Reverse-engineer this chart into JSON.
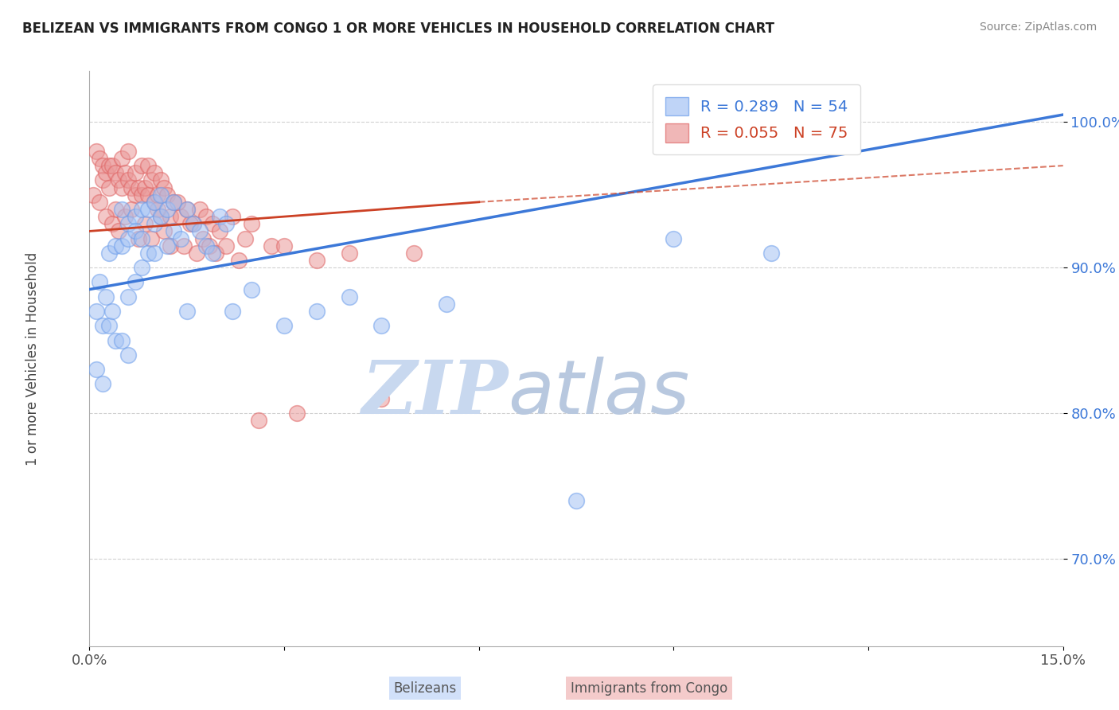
{
  "title": "BELIZEAN VS IMMIGRANTS FROM CONGO 1 OR MORE VEHICLES IN HOUSEHOLD CORRELATION CHART",
  "source": "Source: ZipAtlas.com",
  "ylabel": "1 or more Vehicles in Household",
  "xlim": [
    0.0,
    15.0
  ],
  "ylim": [
    64.0,
    103.5
  ],
  "xtick_positions": [
    0.0,
    3.0,
    6.0,
    9.0,
    12.0,
    15.0
  ],
  "xtick_labels": [
    "0.0%",
    "",
    "",
    "",
    "",
    "15.0%"
  ],
  "ytick_positions": [
    70.0,
    80.0,
    90.0,
    100.0
  ],
  "ytick_labels": [
    "70.0%",
    "80.0%",
    "90.0%",
    "100.0%"
  ],
  "blue_R": 0.289,
  "blue_N": 54,
  "pink_R": 0.055,
  "pink_N": 75,
  "blue_color": "#a4c2f4",
  "pink_color": "#ea9999",
  "blue_edge_color": "#6d9eeb",
  "pink_edge_color": "#e06666",
  "blue_line_color": "#3c78d8",
  "pink_line_color": "#cc4125",
  "legend_label_blue": "Belizeans",
  "legend_label_pink": "Immigrants from Congo",
  "blue_line_x0": 0.0,
  "blue_line_y0": 88.5,
  "blue_line_x1": 15.0,
  "blue_line_y1": 100.5,
  "pink_line_x0": 0.0,
  "pink_line_y0": 92.5,
  "pink_line_x1": 6.0,
  "pink_line_y1": 94.5,
  "pink_dash_x0": 6.0,
  "pink_dash_y0": 94.5,
  "pink_dash_x1": 15.0,
  "pink_dash_y1": 97.0,
  "blue_scatter_x": [
    0.1,
    0.1,
    0.2,
    0.2,
    0.3,
    0.3,
    0.4,
    0.4,
    0.5,
    0.5,
    0.5,
    0.6,
    0.6,
    0.6,
    0.7,
    0.7,
    0.7,
    0.8,
    0.8,
    0.8,
    0.9,
    0.9,
    1.0,
    1.0,
    1.0,
    1.1,
    1.1,
    1.2,
    1.2,
    1.3,
    1.3,
    1.4,
    1.5,
    1.5,
    1.6,
    1.7,
    1.8,
    1.9,
    2.0,
    2.1,
    2.2,
    2.5,
    3.0,
    3.5,
    4.0,
    4.5,
    5.5,
    7.5,
    9.0,
    10.5,
    0.15,
    0.25,
    0.35,
    0.6
  ],
  "blue_scatter_y": [
    87.0,
    83.0,
    86.0,
    82.0,
    91.0,
    86.0,
    91.5,
    85.0,
    94.0,
    91.5,
    85.0,
    93.0,
    92.0,
    88.0,
    93.5,
    92.5,
    89.0,
    94.0,
    92.0,
    90.0,
    94.0,
    91.0,
    94.5,
    93.0,
    91.0,
    95.0,
    93.5,
    94.0,
    91.5,
    94.5,
    92.5,
    92.0,
    94.0,
    87.0,
    93.0,
    92.5,
    91.5,
    91.0,
    93.5,
    93.0,
    87.0,
    88.5,
    86.0,
    87.0,
    88.0,
    86.0,
    87.5,
    74.0,
    92.0,
    91.0,
    89.0,
    88.0,
    87.0,
    84.0
  ],
  "pink_scatter_x": [
    0.05,
    0.1,
    0.15,
    0.2,
    0.2,
    0.25,
    0.3,
    0.3,
    0.35,
    0.4,
    0.4,
    0.45,
    0.5,
    0.5,
    0.55,
    0.6,
    0.6,
    0.65,
    0.7,
    0.7,
    0.75,
    0.8,
    0.8,
    0.85,
    0.9,
    0.9,
    0.95,
    1.0,
    1.0,
    1.05,
    1.1,
    1.1,
    1.15,
    1.2,
    1.25,
    1.3,
    1.4,
    1.5,
    1.6,
    1.7,
    1.8,
    1.9,
    2.0,
    2.2,
    2.4,
    2.5,
    2.8,
    3.0,
    3.5,
    4.0,
    5.0,
    0.15,
    0.25,
    0.35,
    0.45,
    0.55,
    0.65,
    0.75,
    0.85,
    0.95,
    1.05,
    1.15,
    1.25,
    1.35,
    1.45,
    1.55,
    1.65,
    1.75,
    1.85,
    1.95,
    2.1,
    2.3,
    2.6,
    3.2,
    4.5
  ],
  "pink_scatter_y": [
    95.0,
    98.0,
    97.5,
    97.0,
    96.0,
    96.5,
    97.0,
    95.5,
    97.0,
    96.5,
    94.0,
    96.0,
    97.5,
    95.5,
    96.5,
    98.0,
    96.0,
    95.5,
    96.5,
    95.0,
    95.5,
    97.0,
    95.0,
    95.5,
    97.0,
    95.0,
    96.0,
    94.5,
    96.5,
    95.0,
    96.0,
    93.5,
    95.5,
    95.0,
    93.5,
    94.5,
    93.5,
    94.0,
    93.0,
    94.0,
    93.5,
    93.0,
    92.5,
    93.5,
    92.0,
    93.0,
    91.5,
    91.5,
    90.5,
    91.0,
    91.0,
    94.5,
    93.5,
    93.0,
    92.5,
    93.5,
    94.0,
    92.0,
    93.0,
    92.0,
    94.0,
    92.5,
    91.5,
    94.5,
    91.5,
    93.0,
    91.0,
    92.0,
    91.5,
    91.0,
    91.5,
    90.5,
    79.5,
    80.0,
    81.0
  ],
  "background_color": "#ffffff",
  "grid_color": "#cccccc",
  "watermark_zip_color": "#c8d8ef",
  "watermark_atlas_color": "#b8c8df"
}
